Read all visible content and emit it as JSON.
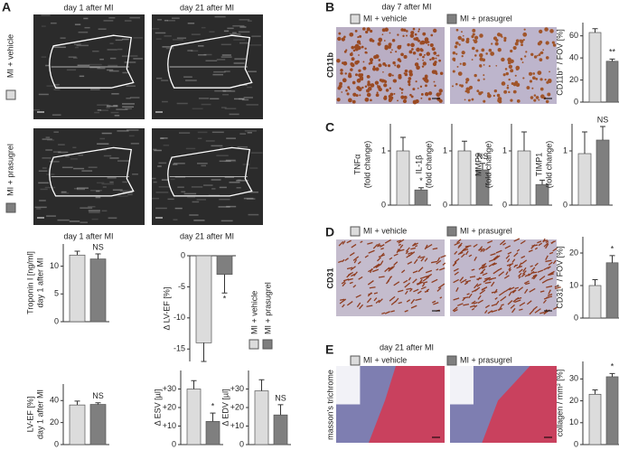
{
  "panel_labels": [
    "A",
    "B",
    "C",
    "D",
    "E"
  ],
  "texts": {
    "a_day1": "day 1 after MI",
    "a_day21": "day 21 after MI",
    "b_title": "day 7 after MI",
    "b_stain": "CD11b",
    "d_stain": "CD31",
    "e_title": "day 21 after MI",
    "e_stain": "masson's trichrome"
  },
  "groups": [
    {
      "name": "MI + vehicle",
      "color": "#dcdcdc"
    },
    {
      "name": "MI + prasugrel",
      "color": "#7f7f7f"
    }
  ],
  "chart_data": [
    {
      "type": "bar",
      "title": "day 1 after MI",
      "ylabel": "Troponin I [ng/ml]",
      "ylabel2": "day 1 after MI",
      "values": [
        12,
        11.3
      ],
      "errors": [
        0.7,
        0.9
      ],
      "annotation": "NS",
      "ylim": [
        0,
        14
      ],
      "yticks": [
        0,
        5,
        10
      ]
    },
    {
      "type": "bar",
      "title": "day 21 after MI",
      "ylabel": "Δ LV-EF [%]",
      "values": [
        -14,
        -3
      ],
      "errors": [
        3,
        3
      ],
      "annotation": "*",
      "ylim": [
        -17,
        0
      ],
      "yticks": [
        0,
        -5,
        -10,
        -15
      ]
    },
    {
      "type": "bar",
      "ylabel": "LV-EF [%]",
      "ylabel2": "day 1 after MI",
      "values": [
        36,
        36.5
      ],
      "errors": [
        3.5,
        1.5
      ],
      "annotation": "NS",
      "ylim": [
        0,
        55
      ],
      "yticks": [
        0,
        20,
        40
      ]
    },
    {
      "type": "bar",
      "ylabel": "Δ ESV [µl]",
      "values": [
        30,
        12.5
      ],
      "errors": [
        4.5,
        4.5
      ],
      "annotation": "*",
      "ylim": [
        0,
        40
      ],
      "yticks": [
        0,
        {
          "value": 10,
          "label": "+10"
        },
        {
          "value": 20,
          "label": "+20"
        },
        {
          "value": 30,
          "label": "+30"
        }
      ]
    },
    {
      "type": "bar",
      "ylabel": "Δ EDV [µl]",
      "values": [
        29,
        16
      ],
      "errors": [
        6,
        5.5
      ],
      "annotation": "NS",
      "ylim": [
        0,
        40
      ],
      "yticks": [
        0,
        {
          "value": 10,
          "label": "+10"
        },
        {
          "value": 20,
          "label": "+20"
        },
        {
          "value": 30,
          "label": "+30"
        }
      ]
    },
    {
      "type": "bar",
      "ylabel": "CD11b⁺ / FOV [%]",
      "values": [
        63,
        37
      ],
      "errors": [
        3.5,
        2
      ],
      "annotation": "**",
      "ylim": [
        0,
        72
      ],
      "yticks": [
        0,
        20,
        40,
        60
      ]
    },
    {
      "type": "bar",
      "ylabel": "TNFα",
      "ylabel2": "(fold change)",
      "values": [
        1,
        0.28
      ],
      "errors": [
        0.25,
        0.04
      ],
      "annotation": "*",
      "ylim": [
        0,
        1.5
      ],
      "yticks": [
        0,
        1
      ]
    },
    {
      "type": "bar",
      "ylabel": "IL-1β",
      "ylabel2": "(fold change)",
      "values": [
        1,
        0.65
      ],
      "errors": [
        0.18,
        0.12
      ],
      "annotation": "NS",
      "ylim": [
        0,
        1.5
      ],
      "yticks": [
        0,
        1
      ]
    },
    {
      "type": "bar",
      "ylabel": "MMP9",
      "ylabel2": "(fold change)",
      "values": [
        1,
        0.38
      ],
      "errors": [
        0.35,
        0.08
      ],
      "ylim": [
        0,
        1.5
      ],
      "yticks": [
        0,
        1
      ]
    },
    {
      "type": "bar",
      "ylabel": "TIMP1",
      "ylabel2": "(fold change)",
      "values": [
        0.95,
        1.2
      ],
      "errors": [
        0.4,
        0.25
      ],
      "annotation": "NS",
      "ylim": [
        0,
        1.5
      ],
      "yticks": [
        0,
        1
      ]
    },
    {
      "type": "bar",
      "ylabel": "CD31⁺ / FOV [%]",
      "values": [
        10,
        17
      ],
      "errors": [
        1.8,
        2.2
      ],
      "annotation": "*",
      "ylim": [
        0,
        25
      ],
      "yticks": [
        0,
        10,
        20
      ]
    },
    {
      "type": "bar",
      "ylabel": "collagen / mm² [%]",
      "values": [
        23,
        31
      ],
      "errors": [
        2,
        1.5
      ],
      "annotation": "*",
      "ylim": [
        0,
        38
      ],
      "yticks": [
        0,
        10,
        20,
        30
      ]
    }
  ]
}
